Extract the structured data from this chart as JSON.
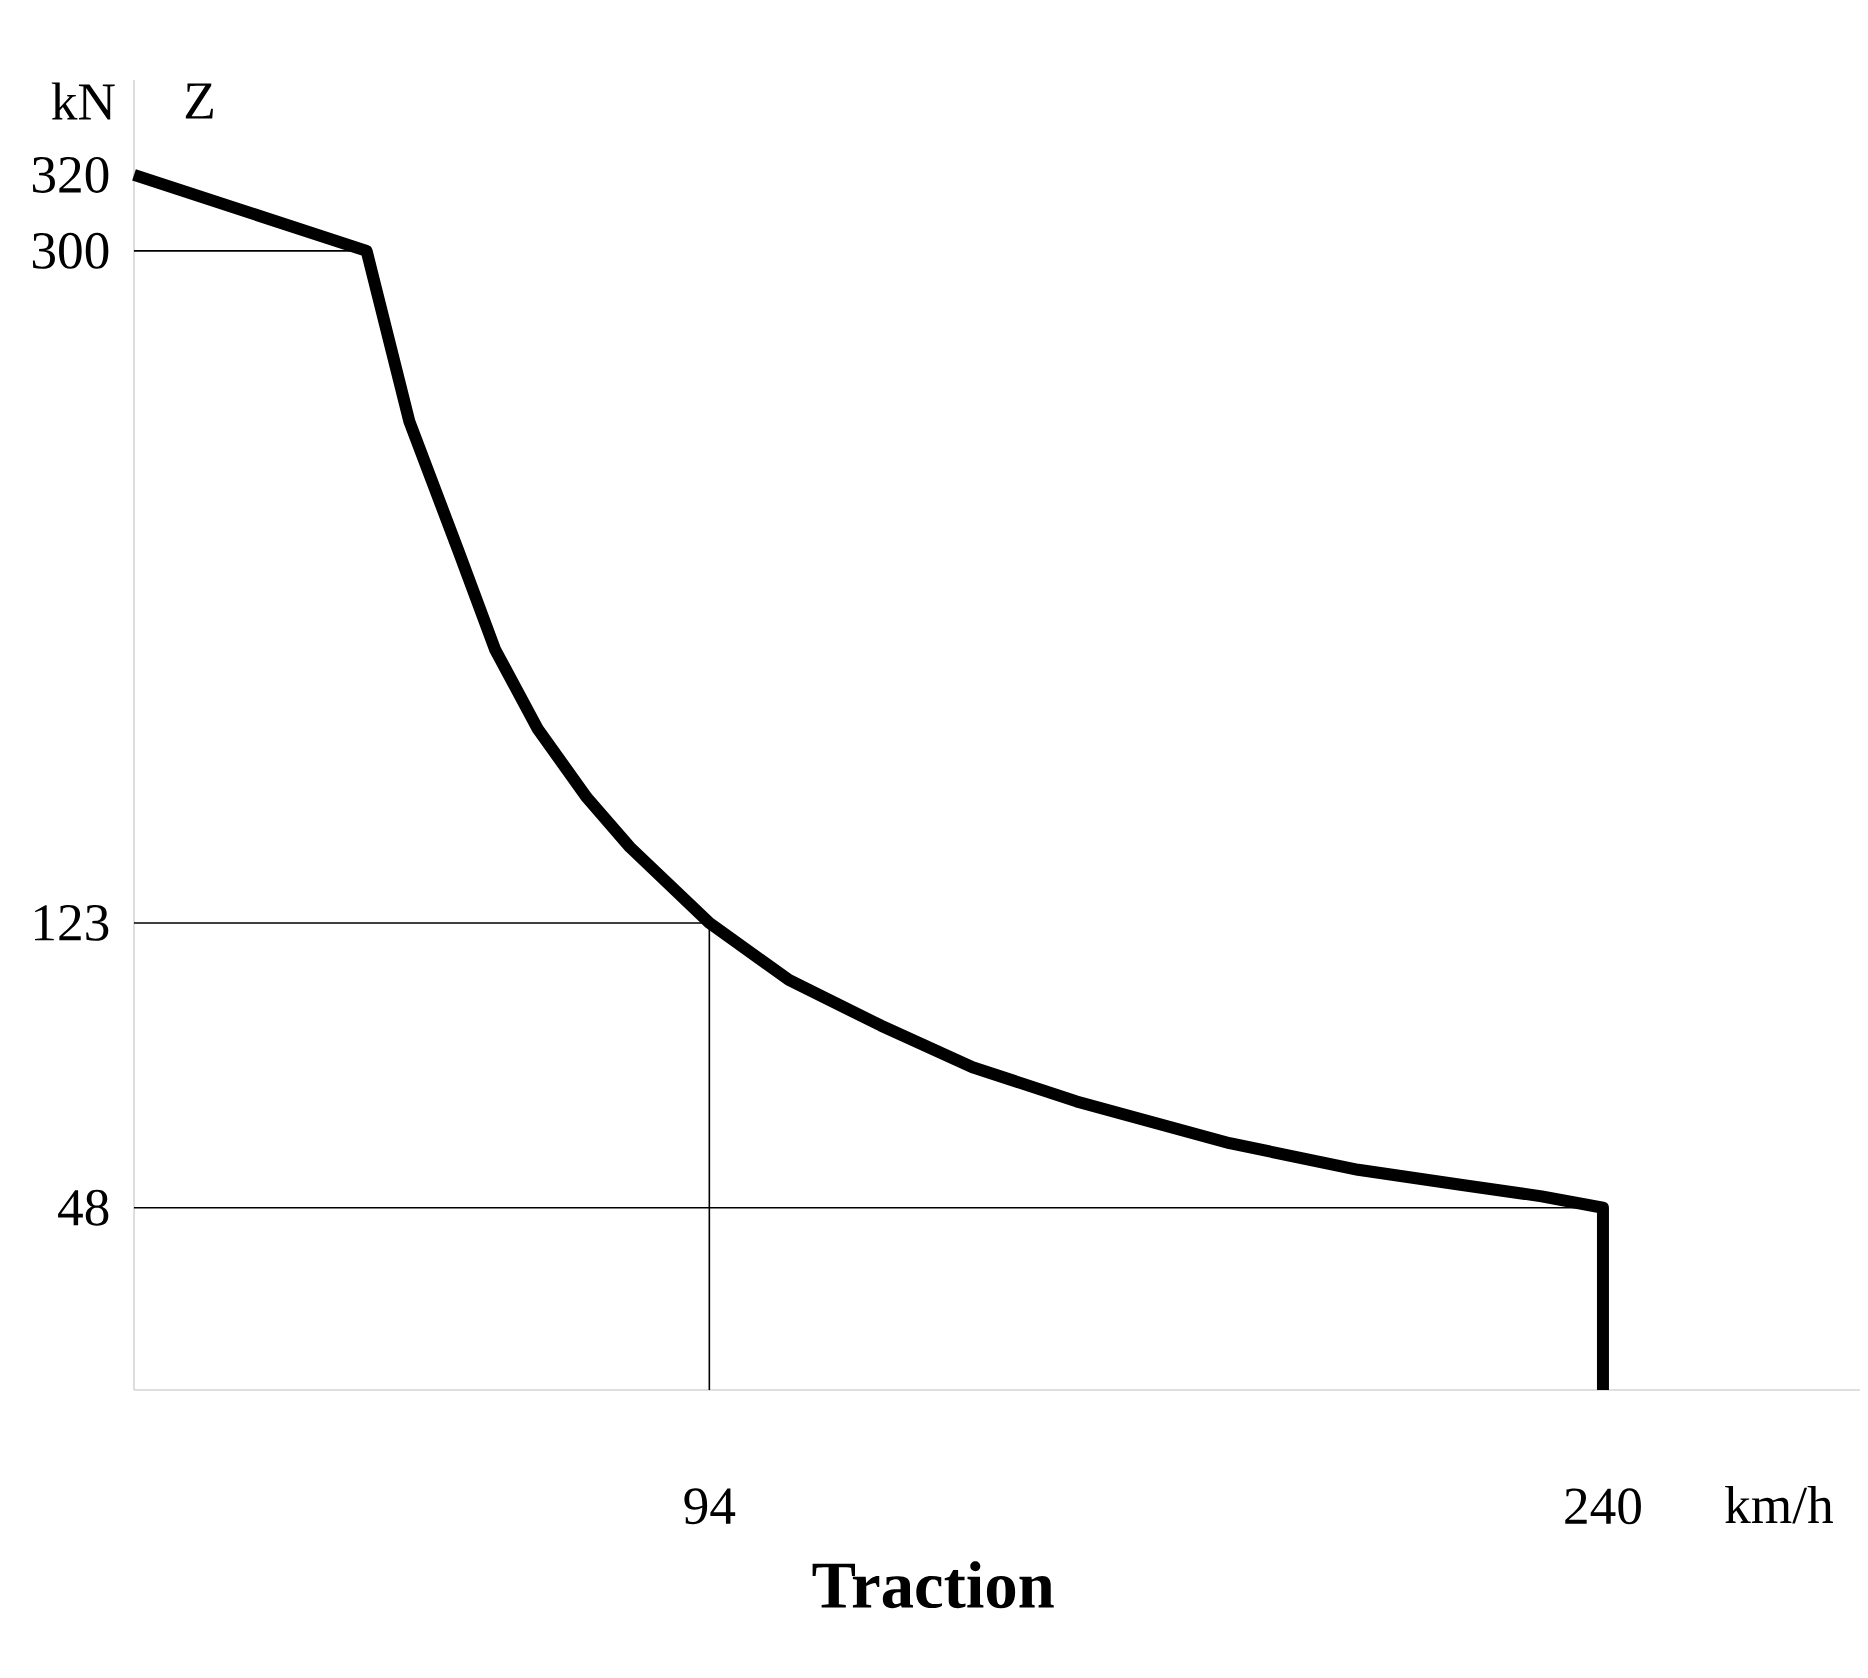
{
  "chart_data": {
    "type": "line",
    "title": "Traction",
    "xlabel": "km/h",
    "ylabel": "kN",
    "annotations": [
      "Z"
    ],
    "x": [
      0,
      38,
      45,
      53,
      59,
      66,
      74,
      81,
      94,
      107,
      122,
      137,
      154,
      179,
      200,
      217,
      230,
      240,
      240
    ],
    "series": [
      {
        "color": "#000000",
        "values": [
          320,
          300,
          255,
          221,
          195,
          174,
          156,
          143,
          123,
          108,
          96,
          85,
          76,
          65,
          58,
          54,
          51,
          48,
          0
        ]
      }
    ],
    "xlim": [
      0,
      282
    ],
    "ylim": [
      0,
      345
    ],
    "xticks": [
      94,
      240
    ],
    "yticks": [
      48,
      123,
      300,
      320
    ],
    "ref_lines": [
      {
        "axis": "y",
        "value": 300,
        "color": "#000000"
      },
      {
        "axis": "y",
        "value": 123,
        "color": "#000000"
      },
      {
        "axis": "y",
        "value": 48,
        "color": "#000000"
      },
      {
        "axis": "x",
        "value": 94,
        "color": "#000000"
      }
    ],
    "grid": false
  }
}
